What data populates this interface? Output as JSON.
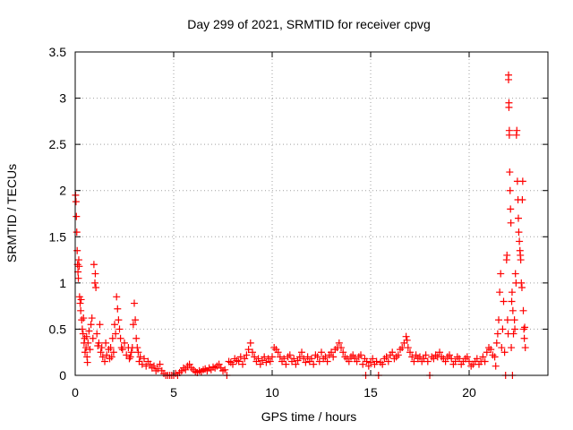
{
  "chart_data": {
    "type": "scatter",
    "title": "Day 299 of 2021, SRMTID for receiver cpvg",
    "xlabel": "GPS time / hours",
    "ylabel": "SRMTID / TECUs",
    "xlim": [
      0,
      24
    ],
    "ylim": [
      0,
      3.5
    ],
    "xticks": [
      0,
      5,
      10,
      15,
      20
    ],
    "yticks": [
      0,
      0.5,
      1,
      1.5,
      2,
      2.5,
      3,
      3.5
    ],
    "xtick_labels": [
      "0",
      "5",
      "10",
      "15",
      "20"
    ],
    "ytick_labels": [
      "0",
      "0.5",
      "1",
      "1.5",
      "2",
      "2.5",
      "3",
      "3.5"
    ],
    "grid": true,
    "marker": "+",
    "color": "#ff0000",
    "series": [
      {
        "name": "SRMTID",
        "points": [
          [
            0.02,
            1.95
          ],
          [
            0.04,
            1.88
          ],
          [
            0.06,
            1.72
          ],
          [
            0.08,
            1.55
          ],
          [
            0.1,
            1.35
          ],
          [
            0.12,
            1.2
          ],
          [
            0.14,
            1.12
          ],
          [
            0.16,
            1.05
          ],
          [
            0.18,
            1.25
          ],
          [
            0.2,
            1.18
          ],
          [
            0.22,
            0.85
          ],
          [
            0.25,
            0.78
          ],
          [
            0.28,
            0.7
          ],
          [
            0.3,
            0.82
          ],
          [
            0.33,
            0.6
          ],
          [
            0.36,
            0.5
          ],
          [
            0.4,
            0.45
          ],
          [
            0.42,
            0.62
          ],
          [
            0.45,
            0.35
          ],
          [
            0.48,
            0.4
          ],
          [
            0.5,
            0.25
          ],
          [
            0.55,
            0.3
          ],
          [
            0.58,
            0.42
          ],
          [
            0.6,
            0.2
          ],
          [
            0.62,
            0.14
          ],
          [
            0.65,
            0.35
          ],
          [
            0.7,
            0.48
          ],
          [
            0.75,
            0.28
          ],
          [
            0.8,
            0.55
          ],
          [
            0.85,
            0.62
          ],
          [
            0.9,
            0.4
          ],
          [
            0.95,
            1.2
          ],
          [
            1.0,
            1.0
          ],
          [
            1.02,
            1.1
          ],
          [
            1.05,
            0.95
          ],
          [
            1.1,
            0.45
          ],
          [
            1.15,
            0.32
          ],
          [
            1.2,
            0.35
          ],
          [
            1.25,
            0.55
          ],
          [
            1.3,
            0.25
          ],
          [
            1.35,
            0.3
          ],
          [
            1.4,
            0.2
          ],
          [
            1.5,
            0.15
          ],
          [
            1.55,
            0.35
          ],
          [
            1.6,
            0.22
          ],
          [
            1.7,
            0.28
          ],
          [
            1.75,
            0.18
          ],
          [
            1.8,
            0.3
          ],
          [
            1.85,
            0.2
          ],
          [
            1.9,
            0.4
          ],
          [
            1.95,
            0.25
          ],
          [
            2.0,
            0.55
          ],
          [
            2.05,
            0.45
          ],
          [
            2.1,
            0.85
          ],
          [
            2.15,
            0.72
          ],
          [
            2.2,
            0.6
          ],
          [
            2.25,
            0.5
          ],
          [
            2.3,
            0.4
          ],
          [
            2.35,
            0.3
          ],
          [
            2.4,
            0.28
          ],
          [
            2.5,
            0.35
          ],
          [
            2.6,
            0.22
          ],
          [
            2.7,
            0.3
          ],
          [
            2.75,
            0.18
          ],
          [
            2.8,
            0.2
          ],
          [
            2.85,
            0.25
          ],
          [
            2.9,
            0.3
          ],
          [
            2.95,
            0.55
          ],
          [
            3.0,
            0.78
          ],
          [
            3.05,
            0.6
          ],
          [
            3.1,
            0.4
          ],
          [
            3.15,
            0.3
          ],
          [
            3.2,
            0.25
          ],
          [
            3.25,
            0.15
          ],
          [
            3.3,
            0.2
          ],
          [
            3.4,
            0.12
          ],
          [
            3.5,
            0.18
          ],
          [
            3.6,
            0.1
          ],
          [
            3.7,
            0.15
          ],
          [
            3.8,
            0.12
          ],
          [
            3.9,
            0.08
          ],
          [
            4.0,
            0.1
          ],
          [
            4.1,
            0.05
          ],
          [
            4.2,
            0.07
          ],
          [
            4.3,
            0.12
          ],
          [
            4.4,
            0.05
          ],
          [
            4.5,
            0.02
          ],
          [
            4.6,
            0.0
          ],
          [
            4.7,
            0.0
          ],
          [
            4.8,
            0.0
          ],
          [
            4.9,
            0.0
          ],
          [
            5.0,
            0.0
          ],
          [
            5.1,
            0.02
          ],
          [
            5.2,
            0.0
          ],
          [
            5.3,
            0.03
          ],
          [
            5.4,
            0.05
          ],
          [
            5.5,
            0.08
          ],
          [
            5.6,
            0.06
          ],
          [
            5.7,
            0.1
          ],
          [
            5.8,
            0.12
          ],
          [
            5.9,
            0.08
          ],
          [
            6.0,
            0.06
          ],
          [
            6.1,
            0.04
          ],
          [
            6.2,
            0.03
          ],
          [
            6.3,
            0.05
          ],
          [
            6.4,
            0.04
          ],
          [
            6.5,
            0.06
          ],
          [
            6.6,
            0.07
          ],
          [
            6.7,
            0.05
          ],
          [
            6.8,
            0.08
          ],
          [
            6.9,
            0.06
          ],
          [
            7.0,
            0.09
          ],
          [
            7.1,
            0.08
          ],
          [
            7.2,
            0.1
          ],
          [
            7.3,
            0.12
          ],
          [
            7.4,
            0.08
          ],
          [
            7.5,
            0.05
          ],
          [
            7.6,
            0.06
          ],
          [
            7.7,
            0.0
          ],
          [
            7.8,
            0.15
          ],
          [
            7.9,
            0.14
          ],
          [
            8.0,
            0.12
          ],
          [
            8.1,
            0.18
          ],
          [
            8.2,
            0.16
          ],
          [
            8.3,
            0.15
          ],
          [
            8.4,
            0.2
          ],
          [
            8.5,
            0.12
          ],
          [
            8.6,
            0.18
          ],
          [
            8.7,
            0.22
          ],
          [
            8.8,
            0.28
          ],
          [
            8.9,
            0.35
          ],
          [
            9.0,
            0.25
          ],
          [
            9.1,
            0.2
          ],
          [
            9.2,
            0.15
          ],
          [
            9.3,
            0.18
          ],
          [
            9.4,
            0.12
          ],
          [
            9.5,
            0.16
          ],
          [
            9.6,
            0.2
          ],
          [
            9.7,
            0.14
          ],
          [
            9.8,
            0.18
          ],
          [
            9.9,
            0.15
          ],
          [
            10.0,
            0.2
          ],
          [
            10.1,
            0.3
          ],
          [
            10.2,
            0.28
          ],
          [
            10.3,
            0.25
          ],
          [
            10.4,
            0.2
          ],
          [
            10.5,
            0.15
          ],
          [
            10.6,
            0.18
          ],
          [
            10.7,
            0.12
          ],
          [
            10.8,
            0.2
          ],
          [
            10.9,
            0.22
          ],
          [
            11.0,
            0.15
          ],
          [
            11.1,
            0.18
          ],
          [
            11.2,
            0.12
          ],
          [
            11.3,
            0.16
          ],
          [
            11.4,
            0.2
          ],
          [
            11.5,
            0.25
          ],
          [
            11.6,
            0.18
          ],
          [
            11.7,
            0.14
          ],
          [
            11.8,
            0.2
          ],
          [
            11.9,
            0.15
          ],
          [
            12.0,
            0.18
          ],
          [
            12.1,
            0.12
          ],
          [
            12.2,
            0.22
          ],
          [
            12.3,
            0.2
          ],
          [
            12.4,
            0.15
          ],
          [
            12.5,
            0.25
          ],
          [
            12.6,
            0.18
          ],
          [
            12.7,
            0.2
          ],
          [
            12.8,
            0.15
          ],
          [
            12.9,
            0.22
          ],
          [
            13.0,
            0.25
          ],
          [
            13.1,
            0.2
          ],
          [
            13.2,
            0.28
          ],
          [
            13.3,
            0.3
          ],
          [
            13.4,
            0.35
          ],
          [
            13.5,
            0.3
          ],
          [
            13.6,
            0.25
          ],
          [
            13.7,
            0.2
          ],
          [
            13.8,
            0.18
          ],
          [
            13.9,
            0.15
          ],
          [
            14.0,
            0.2
          ],
          [
            14.1,
            0.22
          ],
          [
            14.2,
            0.18
          ],
          [
            14.3,
            0.15
          ],
          [
            14.4,
            0.2
          ],
          [
            14.5,
            0.22
          ],
          [
            14.6,
            0.12
          ],
          [
            14.7,
            0.18
          ],
          [
            14.75,
            0.0
          ],
          [
            14.8,
            0.15
          ],
          [
            14.9,
            0.1
          ],
          [
            15.0,
            0.14
          ],
          [
            15.1,
            0.18
          ],
          [
            15.2,
            0.12
          ],
          [
            15.3,
            0.15
          ],
          [
            15.4,
            0.0
          ],
          [
            15.5,
            0.14
          ],
          [
            15.6,
            0.12
          ],
          [
            15.7,
            0.18
          ],
          [
            15.8,
            0.2
          ],
          [
            15.9,
            0.15
          ],
          [
            16.0,
            0.22
          ],
          [
            16.1,
            0.25
          ],
          [
            16.2,
            0.18
          ],
          [
            16.3,
            0.2
          ],
          [
            16.4,
            0.22
          ],
          [
            16.5,
            0.28
          ],
          [
            16.6,
            0.3
          ],
          [
            16.7,
            0.35
          ],
          [
            16.8,
            0.42
          ],
          [
            16.85,
            0.38
          ],
          [
            16.9,
            0.3
          ],
          [
            17.0,
            0.25
          ],
          [
            17.1,
            0.2
          ],
          [
            17.2,
            0.15
          ],
          [
            17.3,
            0.22
          ],
          [
            17.4,
            0.18
          ],
          [
            17.5,
            0.2
          ],
          [
            17.6,
            0.15
          ],
          [
            17.7,
            0.18
          ],
          [
            17.8,
            0.22
          ],
          [
            17.9,
            0.15
          ],
          [
            18.0,
            0.0
          ],
          [
            18.1,
            0.2
          ],
          [
            18.2,
            0.18
          ],
          [
            18.3,
            0.22
          ],
          [
            18.4,
            0.2
          ],
          [
            18.5,
            0.25
          ],
          [
            18.6,
            0.2
          ],
          [
            18.7,
            0.18
          ],
          [
            18.8,
            0.15
          ],
          [
            18.9,
            0.2
          ],
          [
            19.0,
            0.22
          ],
          [
            19.1,
            0.18
          ],
          [
            19.2,
            0.12
          ],
          [
            19.3,
            0.15
          ],
          [
            19.4,
            0.2
          ],
          [
            19.5,
            0.18
          ],
          [
            19.6,
            0.12
          ],
          [
            19.7,
            0.15
          ],
          [
            19.8,
            0.18
          ],
          [
            19.9,
            0.2
          ],
          [
            20.0,
            0.15
          ],
          [
            20.1,
            0.1
          ],
          [
            20.2,
            0.12
          ],
          [
            20.3,
            0.15
          ],
          [
            20.4,
            0.18
          ],
          [
            20.5,
            0.12
          ],
          [
            20.6,
            0.15
          ],
          [
            20.7,
            0.2
          ],
          [
            20.8,
            0.15
          ],
          [
            20.9,
            0.25
          ],
          [
            21.0,
            0.3
          ],
          [
            21.1,
            0.28
          ],
          [
            21.2,
            0.22
          ],
          [
            21.3,
            0.2
          ],
          [
            21.35,
            0.1
          ],
          [
            21.4,
            0.35
          ],
          [
            21.45,
            0.45
          ],
          [
            21.5,
            0.6
          ],
          [
            21.55,
            0.9
          ],
          [
            21.6,
            1.1
          ],
          [
            21.65,
            0.3
          ],
          [
            21.7,
            0.5
          ],
          [
            21.75,
            0.8
          ],
          [
            21.8,
            0.25
          ],
          [
            21.85,
            0.0
          ],
          [
            21.9,
            1.25
          ],
          [
            21.92,
            1.3
          ],
          [
            21.95,
            0.6
          ],
          [
            21.98,
            0.45
          ],
          [
            22.0,
            3.2
          ],
          [
            22.0,
            3.25
          ],
          [
            22.02,
            2.9
          ],
          [
            22.02,
            2.95
          ],
          [
            22.04,
            2.6
          ],
          [
            22.04,
            2.65
          ],
          [
            22.06,
            2.2
          ],
          [
            22.08,
            2.0
          ],
          [
            22.1,
            1.8
          ],
          [
            22.12,
            1.65
          ],
          [
            22.14,
            0.3
          ],
          [
            22.16,
            0.8
          ],
          [
            22.18,
            0.9
          ],
          [
            22.2,
            0.0
          ],
          [
            22.22,
            0.7
          ],
          [
            22.25,
            0.45
          ],
          [
            22.3,
            0.6
          ],
          [
            22.32,
            0.5
          ],
          [
            22.35,
            1.1
          ],
          [
            22.38,
            1.0
          ],
          [
            22.4,
            2.6
          ],
          [
            22.42,
            2.65
          ],
          [
            22.45,
            2.1
          ],
          [
            22.48,
            1.9
          ],
          [
            22.5,
            1.7
          ],
          [
            22.52,
            1.55
          ],
          [
            22.55,
            1.45
          ],
          [
            22.58,
            1.35
          ],
          [
            22.6,
            1.3
          ],
          [
            22.62,
            1.25
          ],
          [
            22.65,
            1.0
          ],
          [
            22.68,
            0.95
          ],
          [
            22.7,
            1.9
          ],
          [
            22.72,
            2.1
          ],
          [
            22.75,
            0.7
          ],
          [
            22.78,
            0.5
          ],
          [
            22.8,
            0.4
          ],
          [
            22.82,
            0.52
          ],
          [
            22.85,
            0.3
          ]
        ]
      }
    ]
  }
}
